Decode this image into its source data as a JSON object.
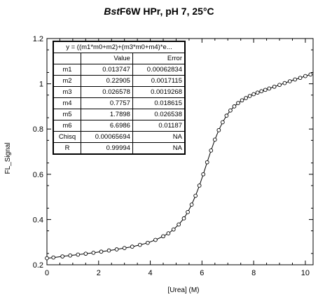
{
  "title": {
    "italic_part": "Bst",
    "rest": "F6W HPr, pH 7, 25°C"
  },
  "fit_table": {
    "equation": "y = ((m1*m0+m2)+(m3*m0+m4)*e...",
    "header_value": "Value",
    "header_error": "Error",
    "rows": [
      {
        "label": "m1",
        "value": "0.013747",
        "error": "0.00062834"
      },
      {
        "label": "m2",
        "value": "0.22905",
        "error": "0.0017115"
      },
      {
        "label": "m3",
        "value": "0.026578",
        "error": "0.0019268"
      },
      {
        "label": "m4",
        "value": "0.7757",
        "error": "0.018615"
      },
      {
        "label": "m5",
        "value": "1.7898",
        "error": "0.026538"
      },
      {
        "label": "m6",
        "value": "6.6986",
        "error": "0.01187"
      },
      {
        "label": "Chisq",
        "value": "0.00065694",
        "error": "NA"
      },
      {
        "label": "R",
        "value": "0.99994",
        "error": "NA"
      }
    ]
  },
  "chart_data": {
    "type": "scatter",
    "title": "BstF6W HPr, pH 7, 25°C",
    "xlabel": "[Urea] (M)",
    "ylabel": "FL_Signal",
    "xlim": [
      0,
      10.3
    ],
    "ylim": [
      0.2,
      1.2
    ],
    "xticks": [
      "0",
      "2",
      "4",
      "6",
      "8",
      "10"
    ],
    "yticks": [
      "0.2",
      "0.4",
      "0.6",
      "0.8",
      "1",
      "1.2"
    ],
    "grid": false,
    "series": [
      {
        "marker": "open-circle",
        "x": [
          0.0,
          0.25,
          0.6,
          0.9,
          1.2,
          1.5,
          1.8,
          2.1,
          2.4,
          2.7,
          3.0,
          3.3,
          3.6,
          3.9,
          4.2,
          4.5,
          4.7,
          4.9,
          5.1,
          5.3,
          5.45,
          5.6,
          5.75,
          5.9,
          6.05,
          6.2,
          6.35,
          6.5,
          6.65,
          6.8,
          6.95,
          7.1,
          7.25,
          7.4,
          7.55,
          7.7,
          7.85,
          8.0,
          8.15,
          8.3,
          8.45,
          8.6,
          8.8,
          9.0,
          9.2,
          9.4,
          9.6,
          9.8,
          10.0,
          10.2
        ],
        "y": [
          0.229,
          0.232,
          0.237,
          0.241,
          0.245,
          0.249,
          0.253,
          0.258,
          0.263,
          0.268,
          0.274,
          0.28,
          0.288,
          0.297,
          0.31,
          0.326,
          0.339,
          0.356,
          0.378,
          0.405,
          0.433,
          0.466,
          0.505,
          0.55,
          0.6,
          0.653,
          0.705,
          0.753,
          0.795,
          0.83,
          0.859,
          0.882,
          0.9,
          0.915,
          0.927,
          0.937,
          0.946,
          0.954,
          0.961,
          0.967,
          0.973,
          0.979,
          0.987,
          0.995,
          1.003,
          1.011,
          1.019,
          1.026,
          1.034,
          1.041
        ]
      }
    ],
    "fit_curve": true
  }
}
